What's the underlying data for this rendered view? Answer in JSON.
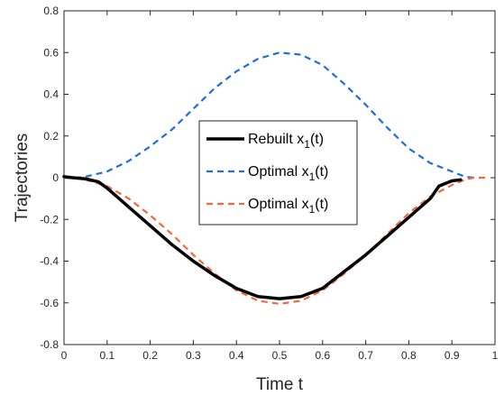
{
  "chart_data": {
    "type": "line",
    "title": "",
    "xlabel": "Time t",
    "ylabel": "Trajectories",
    "xlim": [
      0,
      1
    ],
    "ylim": [
      -0.8,
      0.8
    ],
    "xticks": [
      0,
      0.1,
      0.2,
      0.3,
      0.4,
      0.5,
      0.6,
      0.7,
      0.8,
      0.9,
      1
    ],
    "xtick_labels": [
      "0",
      "0.1",
      "0.2",
      "0.3",
      "0.4",
      "0.5",
      "0.6",
      "0.7",
      "0.8",
      "0.9",
      "1"
    ],
    "yticks": [
      -0.8,
      -0.6,
      -0.4,
      -0.2,
      0,
      0.2,
      0.4,
      0.6,
      0.8
    ],
    "ytick_labels": [
      "-0.8",
      "-0.6",
      "-0.4",
      "-0.2",
      "0",
      "0.2",
      "0.4",
      "0.6",
      "0.8"
    ],
    "grid": false,
    "legend_position": "center",
    "series": [
      {
        "name": "Rebuilt x1(t)",
        "color": "#000000",
        "style": "solid",
        "x": [
          0,
          0.02,
          0.05,
          0.08,
          0.1,
          0.15,
          0.2,
          0.25,
          0.3,
          0.35,
          0.4,
          0.45,
          0.5,
          0.55,
          0.6,
          0.65,
          0.7,
          0.75,
          0.8,
          0.85,
          0.87,
          0.9,
          0.92
        ],
        "y": [
          0.005,
          0.0,
          -0.005,
          -0.02,
          -0.05,
          -0.14,
          -0.23,
          -0.32,
          -0.4,
          -0.47,
          -0.53,
          -0.57,
          -0.58,
          -0.57,
          -0.53,
          -0.45,
          -0.37,
          -0.28,
          -0.19,
          -0.1,
          -0.04,
          -0.015,
          -0.01
        ]
      },
      {
        "name": "Optimal x1(t)",
        "color": "#1f6fd6",
        "style": "dashed",
        "x": [
          0,
          0.03,
          0.05,
          0.1,
          0.15,
          0.2,
          0.25,
          0.3,
          0.35,
          0.4,
          0.45,
          0.5,
          0.55,
          0.6,
          0.65,
          0.7,
          0.75,
          0.8,
          0.85,
          0.9,
          0.93,
          0.95
        ],
        "y": [
          0.0,
          0.0,
          0.005,
          0.03,
          0.08,
          0.15,
          0.23,
          0.33,
          0.43,
          0.51,
          0.57,
          0.6,
          0.59,
          0.54,
          0.45,
          0.35,
          0.24,
          0.14,
          0.07,
          0.03,
          0.005,
          0.0
        ]
      },
      {
        "name": "Optimal x1(t)",
        "color": "#f06a3c",
        "style": "dashed",
        "x": [
          0,
          0.03,
          0.05,
          0.1,
          0.15,
          0.2,
          0.25,
          0.3,
          0.35,
          0.4,
          0.45,
          0.5,
          0.55,
          0.6,
          0.65,
          0.7,
          0.75,
          0.8,
          0.85,
          0.9,
          0.93,
          0.95,
          0.98
        ],
        "y": [
          0.0,
          -0.003,
          -0.01,
          -0.04,
          -0.1,
          -0.18,
          -0.27,
          -0.37,
          -0.46,
          -0.54,
          -0.59,
          -0.605,
          -0.59,
          -0.54,
          -0.46,
          -0.37,
          -0.27,
          -0.17,
          -0.09,
          -0.035,
          -0.01,
          0.0,
          0.0
        ]
      }
    ],
    "legend": [
      {
        "text": "Rebuilt x",
        "sub": "1",
        "tail": "(t)"
      },
      {
        "text": "Optimal x",
        "sub": "1",
        "tail": "(t)"
      },
      {
        "text": "Optimal x",
        "sub": "1",
        "tail": "(t)"
      }
    ]
  }
}
